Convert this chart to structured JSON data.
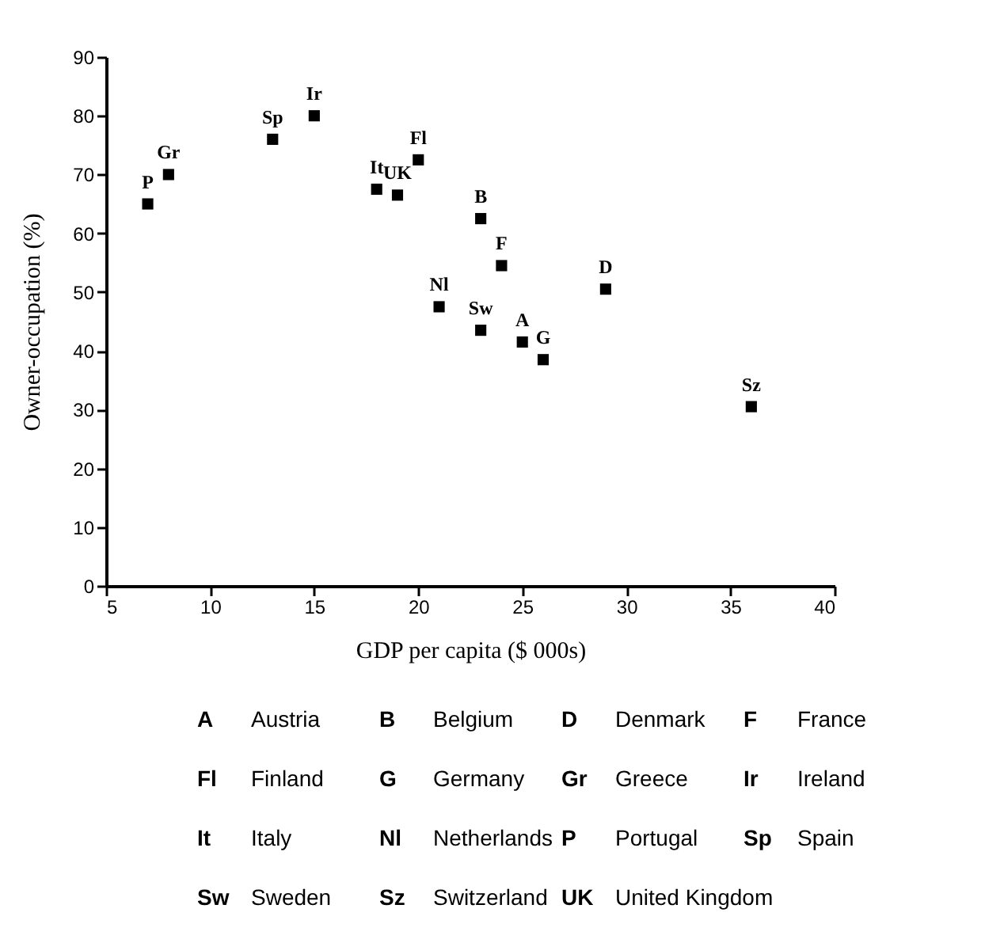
{
  "chart_data": {
    "type": "scatter",
    "xlabel": "GDP per capita ($ 000s)",
    "ylabel": "Owner-occupation (%)",
    "x": [
      7,
      8,
      13,
      15,
      18,
      19,
      20,
      21,
      23,
      24,
      29,
      23,
      25,
      26,
      36
    ],
    "series": [
      {
        "color": "#000000",
        "values": [
          65,
          70,
          76,
          80,
          67.5,
          66.5,
          72.5,
          47.5,
          62.5,
          54.5,
          50.5,
          43.5,
          41.5,
          38.5,
          30.5
        ]
      }
    ],
    "xlim": [
      5,
      40
    ],
    "xticks": [
      5,
      10,
      15,
      20,
      25,
      30,
      35,
      40
    ],
    "ylim": [
      0,
      90
    ],
    "yticks": [
      0,
      10,
      20,
      30,
      40,
      50,
      60,
      70,
      80,
      90
    ],
    "grid": false,
    "legend": false,
    "marker": "square",
    "annotations": [
      {
        "text": "P",
        "x": 7,
        "y": 65
      },
      {
        "text": "Gr",
        "x": 8,
        "y": 70
      },
      {
        "text": "Sp",
        "x": 13,
        "y": 76
      },
      {
        "text": "Ir",
        "x": 15,
        "y": 80
      },
      {
        "text": "It",
        "x": 18,
        "y": 67.5
      },
      {
        "text": "UK",
        "x": 19,
        "y": 66.5
      },
      {
        "text": "Fl",
        "x": 20,
        "y": 72.5
      },
      {
        "text": "Nl",
        "x": 21,
        "y": 47.5
      },
      {
        "text": "B",
        "x": 23,
        "y": 62.5
      },
      {
        "text": "F",
        "x": 24,
        "y": 54.5
      },
      {
        "text": "D",
        "x": 29,
        "y": 50.5
      },
      {
        "text": "Sw",
        "x": 23,
        "y": 43.5
      },
      {
        "text": "A",
        "x": 25,
        "y": 41.5
      },
      {
        "text": "G",
        "x": 26,
        "y": 38.5
      },
      {
        "text": "Sz",
        "x": 36,
        "y": 30.5
      },
      "A Austria",
      "B Belgium",
      "D Denmark",
      "F France",
      "Fl Finland",
      "G Germany",
      "Gr Greece",
      "Ir Ireland",
      "It Italy",
      "Nl Netherlands",
      "P Portugal",
      "Sp Spain",
      "Sw Sweden",
      "Sz Switzerland",
      "UK United Kingdom"
    ]
  }
}
